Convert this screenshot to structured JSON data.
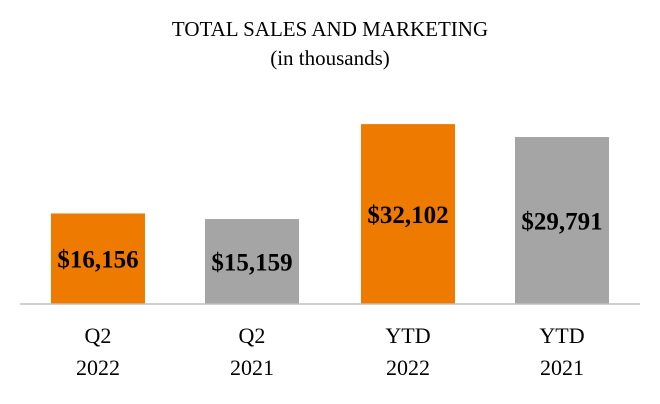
{
  "chart_data": {
    "type": "bar",
    "title": "TOTAL SALES AND MARKETING",
    "subtitle": "(in thousands)",
    "categories": [
      [
        "Q2",
        "2022"
      ],
      [
        "Q2",
        "2021"
      ],
      [
        "YTD",
        "2022"
      ],
      [
        "YTD",
        "2021"
      ]
    ],
    "values": [
      16156,
      15159,
      32102,
      29791
    ],
    "data_labels": [
      "$16,156",
      "$15,159",
      "$32,102",
      "$29,791"
    ],
    "colors": [
      "#EE7B00",
      "#A5A5A5",
      "#EE7B00",
      "#A5A5A5"
    ],
    "ylim": [
      0,
      36400
    ],
    "grid": false,
    "legend": "none"
  }
}
